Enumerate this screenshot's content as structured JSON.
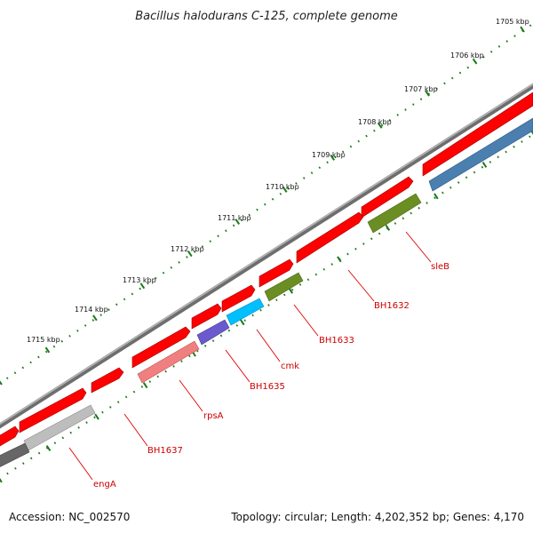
{
  "title": "Bacillus halodurans C-125, complete genome",
  "footer": {
    "accession": "Accession: NC_002570",
    "summary": "Topology: circular; Length: 4,202,352 bp; Genes: 4,170"
  },
  "ticks": [
    {
      "label": "1705 kbp"
    },
    {
      "label": "1706 kbp"
    },
    {
      "label": "1707 kbp"
    },
    {
      "label": "1708 kbp"
    },
    {
      "label": "1709 kbp"
    },
    {
      "label": "1710 kbp"
    },
    {
      "label": "1711 kbp"
    },
    {
      "label": "1712 kbp"
    },
    {
      "label": "1713 kbp"
    },
    {
      "label": "1714 kbp"
    },
    {
      "label": "1715 kbp"
    }
  ],
  "gene_labels": [
    {
      "text": "sleB"
    },
    {
      "text": "BH1632"
    },
    {
      "text": "BH1633"
    },
    {
      "text": "cmk"
    },
    {
      "text": "BH1635"
    },
    {
      "text": "rpsA"
    },
    {
      "text": "BH1637"
    },
    {
      "text": "engA"
    }
  ],
  "colors": {
    "backbone": "#8c8c8c",
    "cds": "#ff0000",
    "tick": "#1a7a1a",
    "label": "#cc0000",
    "sleB": "#4a7fb0",
    "BH1633": "#6b8e23",
    "cmk": "#00bfff",
    "BH1635": "#6a5acd",
    "rpsA": "#f08080",
    "engA": "#bdbdbd",
    "engA_dark": "#666666"
  }
}
